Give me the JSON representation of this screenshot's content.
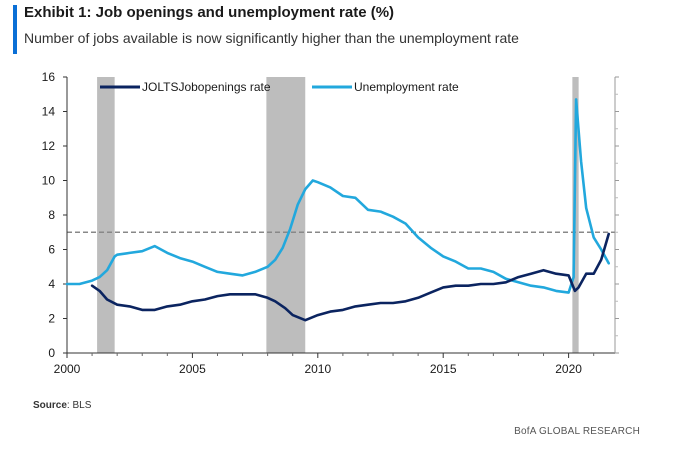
{
  "header": {
    "title": "Exhibit 1: Job openings and unemployment rate (%)",
    "subtitle": "Number of jobs available is now significantly higher than the unemployment rate"
  },
  "footer": {
    "source_label": "Source",
    "source_value": ": BLS",
    "brand": "BofA GLOBAL RESEARCH"
  },
  "colors": {
    "jolts": "#0b2460",
    "unemployment": "#22a8dd",
    "recession": "#bdbdbd",
    "reference_line": "#888888",
    "accent": "#0a6fd6"
  },
  "chart_data": {
    "type": "line",
    "title": "Exhibit 1: Job openings and unemployment rate (%)",
    "xlabel": "",
    "ylabel": "",
    "xlim": [
      2000,
      2021.85
    ],
    "ylim": [
      0,
      16
    ],
    "x_ticks": [
      2000,
      2005,
      2010,
      2015,
      2020
    ],
    "y_ticks": [
      0,
      2,
      4,
      6,
      8,
      10,
      12,
      14,
      16
    ],
    "grid": false,
    "legend_position": "top",
    "reference_line": {
      "y": 7,
      "style": "dashed"
    },
    "recessions": [
      {
        "start": 2001.2,
        "end": 2001.9
      },
      {
        "start": 2007.95,
        "end": 2009.5
      },
      {
        "start": 2020.15,
        "end": 2020.4
      }
    ],
    "series": [
      {
        "name": "JOLTSJobopenings rate",
        "color": "#0b2460",
        "x": [
          2001.0,
          2001.3,
          2001.6,
          2002.0,
          2002.5,
          2003.0,
          2003.5,
          2004.0,
          2004.5,
          2005.0,
          2005.5,
          2006.0,
          2006.5,
          2007.0,
          2007.5,
          2008.0,
          2008.3,
          2008.7,
          2009.0,
          2009.5,
          2010.0,
          2010.5,
          2011.0,
          2011.5,
          2012.0,
          2012.5,
          2013.0,
          2013.5,
          2014.0,
          2014.5,
          2015.0,
          2015.5,
          2016.0,
          2016.5,
          2017.0,
          2017.5,
          2018.0,
          2018.5,
          2019.0,
          2019.5,
          2020.0,
          2020.25,
          2020.4,
          2020.7,
          2021.0,
          2021.3,
          2021.6
        ],
        "values": [
          3.9,
          3.6,
          3.1,
          2.8,
          2.7,
          2.5,
          2.5,
          2.7,
          2.8,
          3.0,
          3.1,
          3.3,
          3.4,
          3.4,
          3.4,
          3.2,
          3.0,
          2.6,
          2.2,
          1.9,
          2.2,
          2.4,
          2.5,
          2.7,
          2.8,
          2.9,
          2.9,
          3.0,
          3.2,
          3.5,
          3.8,
          3.9,
          3.9,
          4.0,
          4.0,
          4.1,
          4.4,
          4.6,
          4.8,
          4.6,
          4.5,
          3.6,
          3.8,
          4.6,
          4.6,
          5.4,
          6.9
        ]
      },
      {
        "name": "Unemployment  rate",
        "color": "#22a8dd",
        "x": [
          2000.0,
          2000.5,
          2001.0,
          2001.3,
          2001.6,
          2001.9,
          2002.0,
          2002.5,
          2003.0,
          2003.5,
          2004.0,
          2004.5,
          2005.0,
          2005.5,
          2006.0,
          2006.5,
          2007.0,
          2007.5,
          2008.0,
          2008.3,
          2008.6,
          2008.9,
          2009.2,
          2009.5,
          2009.8,
          2010.0,
          2010.5,
          2011.0,
          2011.5,
          2012.0,
          2012.5,
          2013.0,
          2013.5,
          2014.0,
          2014.5,
          2015.0,
          2015.5,
          2016.0,
          2016.5,
          2017.0,
          2017.5,
          2018.0,
          2018.5,
          2019.0,
          2019.5,
          2020.0,
          2020.2,
          2020.3,
          2020.5,
          2020.7,
          2021.0,
          2021.3,
          2021.6
        ],
        "values": [
          4.0,
          4.0,
          4.2,
          4.4,
          4.8,
          5.6,
          5.7,
          5.8,
          5.9,
          6.2,
          5.8,
          5.5,
          5.3,
          5.0,
          4.7,
          4.6,
          4.5,
          4.7,
          5.0,
          5.4,
          6.1,
          7.2,
          8.6,
          9.5,
          10.0,
          9.9,
          9.6,
          9.1,
          9.0,
          8.3,
          8.2,
          7.9,
          7.5,
          6.7,
          6.1,
          5.6,
          5.3,
          4.9,
          4.9,
          4.7,
          4.3,
          4.1,
          3.9,
          3.8,
          3.6,
          3.5,
          4.4,
          14.7,
          11.1,
          8.4,
          6.7,
          6.0,
          5.2
        ]
      }
    ]
  }
}
